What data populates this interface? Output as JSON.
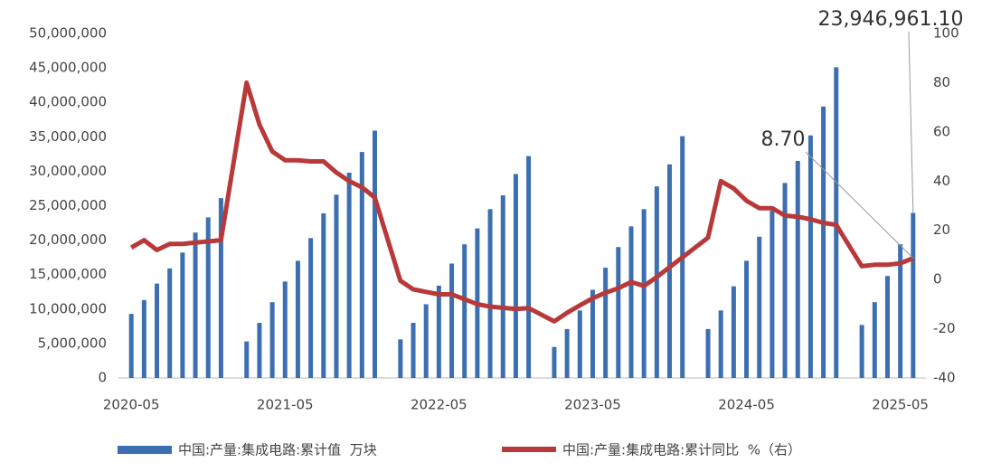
{
  "chart_data": {
    "type": "bar-line",
    "x": [
      "2020-05",
      "2020-06",
      "2020-07",
      "2020-08",
      "2020-09",
      "2020-10",
      "2020-11",
      "2020-12",
      "2021-02",
      "2021-03",
      "2021-04",
      "2021-05",
      "2021-06",
      "2021-07",
      "2021-08",
      "2021-09",
      "2021-10",
      "2021-11",
      "2021-12",
      "2022-02",
      "2022-03",
      "2022-04",
      "2022-05",
      "2022-06",
      "2022-07",
      "2022-08",
      "2022-09",
      "2022-10",
      "2022-11",
      "2022-12",
      "2023-02",
      "2023-03",
      "2023-04",
      "2023-05",
      "2023-06",
      "2023-07",
      "2023-08",
      "2023-09",
      "2023-10",
      "2023-11",
      "2023-12",
      "2024-02",
      "2024-03",
      "2024-04",
      "2024-05",
      "2024-06",
      "2024-07",
      "2024-08",
      "2024-09",
      "2024-10",
      "2024-11",
      "2024-12",
      "2025-02",
      "2025-03",
      "2025-04",
      "2025-05",
      "2025-06"
    ],
    "xlim": [
      "2020-04",
      "2025-07"
    ],
    "xticks": [
      "2020-05",
      "2021-05",
      "2022-05",
      "2023-05",
      "2024-05",
      "2025-05"
    ],
    "series": [
      {
        "name": "中国:产量:集成电路:累计值  万块",
        "type": "bar",
        "color": "#3c6fb0",
        "values": [
          9300000,
          11300000,
          13700000,
          15900000,
          18200000,
          21100000,
          23300000,
          26100000,
          5300000,
          8000000,
          11000000,
          14000000,
          17000000,
          20300000,
          23900000,
          26600000,
          29800000,
          32800000,
          35900000,
          5600000,
          8000000,
          10700000,
          13400000,
          16600000,
          19400000,
          21700000,
          24500000,
          26500000,
          29600000,
          32200000,
          4500000,
          7100000,
          9800000,
          12800000,
          16000000,
          19000000,
          22000000,
          24500000,
          27800000,
          31000000,
          35100000,
          7100000,
          9800000,
          13300000,
          17000000,
          20500000,
          24300000,
          28300000,
          31500000,
          35200000,
          39400000,
          45100000,
          7700000,
          11000000,
          14800000,
          19400000,
          23946961.1
        ]
      },
      {
        "name": "中国:产量:集成电路:累计同比  %（右）",
        "type": "line",
        "axis": "y2",
        "color": "#b8393a",
        "values": [
          13,
          16,
          12,
          14.5,
          14.5,
          15,
          15.5,
          16,
          80,
          63,
          52,
          48.5,
          48.5,
          48,
          48,
          43.5,
          40,
          37.5,
          33.3,
          -0.5,
          -4,
          -5,
          -6,
          -6,
          -8,
          -10,
          -11,
          -11.5,
          -12,
          -11.6,
          -17,
          -13.5,
          -10.5,
          -7.6,
          -5.4,
          -3.5,
          -1,
          -2.6,
          1,
          5,
          9,
          17,
          40,
          37,
          32,
          29,
          29,
          26,
          25.5,
          24.5,
          23,
          22.2,
          5.4,
          6,
          6,
          6.6,
          8.7
        ]
      }
    ],
    "ylim": [
      0,
      50000000
    ],
    "yticks": [
      0,
      {
        "value": 5000000,
        "label": "5,000,000"
      },
      {
        "value": 10000000,
        "label": "10,000,000"
      },
      {
        "value": 15000000,
        "label": "15,000,000"
      },
      {
        "value": 20000000,
        "label": "20,000,000"
      },
      {
        "value": 25000000,
        "label": "25,000,000"
      },
      {
        "value": 30000000,
        "label": "30,000,000"
      },
      {
        "value": 35000000,
        "label": "35,000,000"
      },
      {
        "value": 40000000,
        "label": "40,000,000"
      },
      {
        "value": 45000000,
        "label": "45,000,000"
      },
      {
        "value": 50000000,
        "label": "50,000,000"
      }
    ],
    "y2lim": [
      -40,
      100
    ],
    "y2ticks": [
      -40,
      -20,
      0,
      20,
      40,
      60,
      80,
      100
    ],
    "annotations": [
      {
        "text": "23,946,961.10",
        "series": 0,
        "index": 56
      },
      {
        "text": "8.70",
        "series": 1,
        "index": 56
      }
    ],
    "legend": "bottom"
  }
}
